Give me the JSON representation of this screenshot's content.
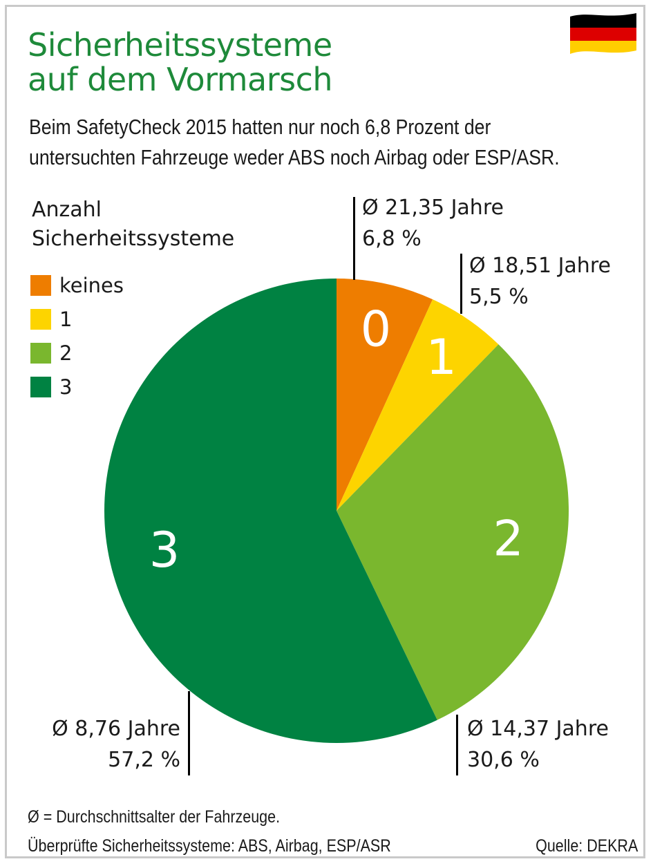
{
  "title": {
    "line1": "Sicherheitssysteme",
    "line2": "auf dem Vormarsch"
  },
  "subtitle": {
    "line1": "Beim SafetyCheck 2015 hatten nur noch 6,8 Prozent der",
    "line2": "untersuchten Fahrzeuge weder ABS noch Airbag oder ESP/ASR."
  },
  "legend": {
    "title_line1": "Anzahl",
    "title_line2": "Sicherheitssysteme",
    "items": [
      {
        "label": "keines",
        "color": "#ee7d00"
      },
      {
        "label": "1",
        "color": "#fdd400"
      },
      {
        "label": "2",
        "color": "#7ab72e"
      },
      {
        "label": "3",
        "color": "#008242"
      }
    ]
  },
  "chart_data": {
    "type": "pie",
    "start_angle": "12 o'clock, clockwise",
    "slices": [
      {
        "label": "0",
        "value": 6.8,
        "percent_text": "6,8 %",
        "age_text": "Ø 21,35 Jahre",
        "color": "#ee7d00"
      },
      {
        "label": "1",
        "value": 5.5,
        "percent_text": "5,5 %",
        "age_text": "Ø 18,51 Jahre",
        "color": "#fdd400"
      },
      {
        "label": "2",
        "value": 30.6,
        "percent_text": "30,6 %",
        "age_text": "Ø 14,37 Jahre",
        "color": "#7ab72e"
      },
      {
        "label": "3",
        "value": 57.2,
        "percent_text": "57,2 %",
        "age_text": "Ø 8,76 Jahre",
        "color": "#008242"
      }
    ]
  },
  "footer": {
    "note": "Ø = Durchschnittsalter der Fahrzeuge.",
    "systems": "Überprüfte Sicherheitssysteme: ABS, Airbag, ESP/ASR",
    "source": "Quelle: DEKRA"
  },
  "flag": {
    "colors": [
      "#000000",
      "#dd0000",
      "#ffce00"
    ]
  }
}
